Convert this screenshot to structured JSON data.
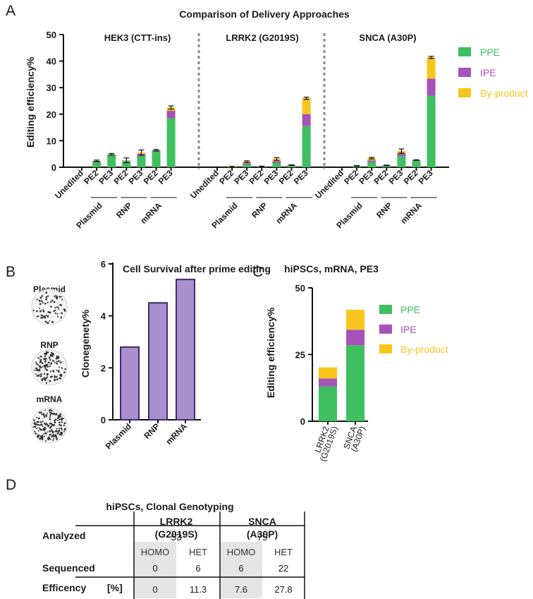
{
  "colors": {
    "ppe": "#3fbf5f",
    "ipe": "#a553b8",
    "byproduct": "#f8c51c",
    "survival_bar": "#a98fcc",
    "survival_edge": "#3e2a6e",
    "divider": "#8a8a8a",
    "shade": "#e5e5e5"
  },
  "chart_data": [
    {
      "panel": "A",
      "type": "bar",
      "stacked": true,
      "title": "Comparison of Delivery Approaches",
      "ylabel": "Editing efficiency%",
      "ylim": [
        0,
        50
      ],
      "yticks": [
        "0",
        "10",
        "20",
        "30",
        "40",
        "50"
      ],
      "legend": [
        "PPE",
        "IPE",
        "By-product"
      ],
      "legend_position": "right",
      "groups": [
        {
          "name": "HEK3 (CTT-ins)",
          "categories": [
            "Unedited",
            "PE2",
            "PE3",
            "PE2",
            "PE3",
            "PE2",
            "PE3"
          ],
          "series": [
            {
              "name": "PPE",
              "values": [
                0,
                2.2,
                4.6,
                2.3,
                4.3,
                6.1,
                18.5
              ]
            },
            {
              "name": "IPE",
              "values": [
                0,
                0.2,
                0.2,
                0.2,
                0.7,
                0.3,
                2.8
              ]
            },
            {
              "name": "By-product",
              "values": [
                0,
                0,
                0.1,
                0.1,
                0.5,
                0,
                1.2
              ]
            }
          ],
          "errors": [
            0,
            0.3,
            0.3,
            0.9,
            1.0,
            0.3,
            0.6
          ]
        },
        {
          "name": "LRRK2 (G2019S)",
          "categories": [
            "Unedited",
            "PE2",
            "PE3",
            "PE2",
            "PE3",
            "PE2",
            "PE3"
          ],
          "series": [
            {
              "name": "PPE",
              "values": [
                0,
                0,
                1.0,
                0.2,
                1.6,
                0.7,
                15.5
              ]
            },
            {
              "name": "IPE",
              "values": [
                0,
                0,
                0.5,
                0,
                0.7,
                0.1,
                4.5
              ]
            },
            {
              "name": "By-product",
              "values": [
                0,
                0.2,
                0.6,
                0.1,
                0.8,
                0,
                6.0
              ]
            }
          ],
          "errors": [
            0,
            0.1,
            0.3,
            0.1,
            0.5,
            0.1,
            0.4
          ]
        },
        {
          "name": "SNCA (A30P)",
          "categories": [
            "Unedited",
            "PE2",
            "PE3",
            "PE2",
            "PE3",
            "PE2",
            "PE3"
          ],
          "series": [
            {
              "name": "PPE",
              "values": [
                0,
                0.3,
                2.0,
                0.6,
                4.2,
                2.5,
                27.0
              ]
            },
            {
              "name": "IPE",
              "values": [
                0,
                0.1,
                0.6,
                0.1,
                1.1,
                0.2,
                6.4
              ]
            },
            {
              "name": "By-product",
              "values": [
                0,
                0.1,
                0.8,
                0,
                0.8,
                0,
                8.0
              ]
            }
          ],
          "errors": [
            0,
            0.1,
            0.3,
            0.1,
            0.8,
            0.1,
            0.4
          ]
        }
      ],
      "method_labels": [
        "Plasmid",
        "RNP",
        "mRNA"
      ]
    },
    {
      "panel": "B",
      "type": "bar",
      "title": "Cell Survival after prime editing",
      "ylabel": "Clonegenety%",
      "categories": [
        "Plasmid",
        "RNP",
        "mRNA"
      ],
      "values": [
        2.8,
        4.5,
        5.4
      ],
      "ylim": [
        0,
        6
      ],
      "yticks": [
        "0",
        "2",
        "4",
        "6"
      ],
      "image_labels": [
        "Plasmid",
        "RNP",
        "mRNA"
      ]
    },
    {
      "panel": "C",
      "type": "bar",
      "stacked": true,
      "title": "hiPSCs, mRNA, PE3",
      "ylabel": "Editing efficiency%",
      "ylim": [
        0,
        50
      ],
      "yticks": [
        "0",
        "25",
        "50"
      ],
      "categories": [
        [
          "LRRK2",
          "(G2019S)"
        ],
        [
          "SNCA",
          "(A30P)"
        ]
      ],
      "series": [
        {
          "name": "PPE",
          "values": [
            13.0,
            28.5
          ]
        },
        {
          "name": "IPE",
          "values": [
            3.0,
            5.8
          ]
        },
        {
          "name": "By-product",
          "values": [
            4.2,
            7.5
          ]
        }
      ],
      "legend": [
        "PPE",
        "IPE",
        "By-product"
      ]
    },
    {
      "panel": "D",
      "type": "table",
      "title": "hiPSCs, Clonal Genotyping",
      "columns": [
        [
          "LRRK2",
          "(G2019S)"
        ],
        [
          "SNCA",
          "(A30P)"
        ]
      ],
      "rows": {
        "analyzed": {
          "label": "Analyzed",
          "values": [
            "53",
            "79"
          ]
        },
        "subheaders": [
          "HOMO",
          "HET",
          "HOMO",
          "HET"
        ],
        "sequenced": {
          "label": "Sequenced",
          "values": [
            "0",
            "6",
            "6",
            "22"
          ]
        },
        "efficiency": {
          "label": "Efficency",
          "unit": "[%]",
          "values": [
            "0",
            "11.3",
            "7.6",
            "27.8"
          ]
        }
      }
    }
  ],
  "panel_letters": [
    "A",
    "B",
    "C",
    "D"
  ]
}
